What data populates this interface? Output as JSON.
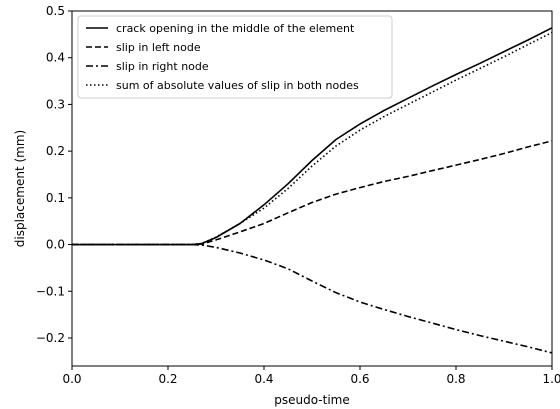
{
  "chart_data": {
    "type": "line",
    "title": "",
    "xlabel": "pseudo-time",
    "ylabel": "displacement (mm)",
    "xlim": [
      0.0,
      1.0
    ],
    "ylim": [
      -0.26,
      0.5
    ],
    "xticks": [
      "0.0",
      "0.2",
      "0.4",
      "0.6",
      "0.8",
      "1.0"
    ],
    "xtick_values": [
      0.0,
      0.2,
      0.4,
      0.6,
      0.8,
      1.0
    ],
    "yticks": [
      "−0.2",
      "−0.1",
      "0.0",
      "0.1",
      "0.2",
      "0.3",
      "0.4",
      "0.5"
    ],
    "ytick_values": [
      -0.2,
      -0.1,
      0.0,
      0.1,
      0.2,
      0.3,
      0.4,
      0.5
    ],
    "grid": false,
    "legend_position": "top-left",
    "x": [
      0.0,
      0.05,
      0.1,
      0.15,
      0.2,
      0.25,
      0.27,
      0.3,
      0.35,
      0.4,
      0.45,
      0.5,
      0.55,
      0.6,
      0.65,
      0.7,
      0.75,
      0.8,
      0.85,
      0.9,
      0.95,
      1.0
    ],
    "series": [
      {
        "name": "crack opening in the middle of the element",
        "style": "solid",
        "values": [
          0.0,
          0.0,
          0.0,
          0.0,
          0.0,
          0.0,
          0.002,
          0.015,
          0.045,
          0.085,
          0.13,
          0.18,
          0.225,
          0.258,
          0.287,
          0.313,
          0.339,
          0.364,
          0.388,
          0.413,
          0.438,
          0.464
        ]
      },
      {
        "name": "slip in left node",
        "style": "dashed",
        "values": [
          0.0,
          0.0,
          0.0,
          0.0,
          0.0,
          0.0,
          0.001,
          0.01,
          0.027,
          0.045,
          0.068,
          0.09,
          0.108,
          0.122,
          0.135,
          0.146,
          0.158,
          0.17,
          0.182,
          0.195,
          0.209,
          0.222
        ]
      },
      {
        "name": "slip in right node",
        "style": "dashdot",
        "values": [
          0.0,
          0.0,
          0.0,
          0.0,
          0.0,
          0.0,
          -0.001,
          -0.006,
          -0.018,
          -0.033,
          -0.052,
          -0.078,
          -0.103,
          -0.123,
          -0.139,
          -0.154,
          -0.168,
          -0.182,
          -0.195,
          -0.207,
          -0.219,
          -0.232
        ]
      },
      {
        "name": "sum of absolute values of slip in both nodes",
        "style": "dotted",
        "values": [
          0.0,
          0.0,
          0.0,
          0.0,
          0.0,
          0.0,
          0.002,
          0.016,
          0.045,
          0.078,
          0.12,
          0.168,
          0.211,
          0.245,
          0.274,
          0.3,
          0.326,
          0.352,
          0.377,
          0.402,
          0.428,
          0.454
        ]
      }
    ]
  }
}
